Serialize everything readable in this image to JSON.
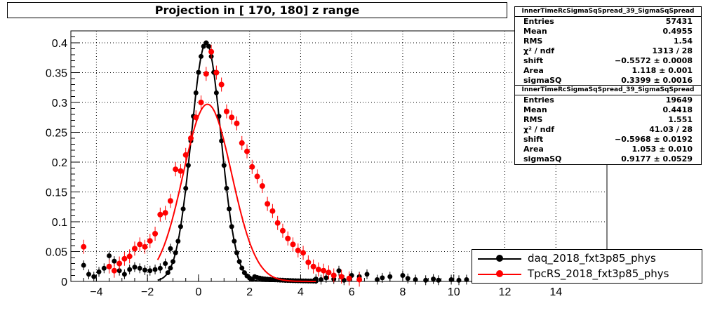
{
  "chart_data": {
    "type": "scatter",
    "title": "Projection in [ 170, 180] z range",
    "xlim": [
      -5,
      16
    ],
    "ylim": [
      0,
      0.42
    ],
    "x_ticks": [
      "−4",
      "−2",
      "0",
      "2",
      "4",
      "6",
      "8",
      "10",
      "12",
      "14"
    ],
    "x_tick_values": [
      -4,
      -2,
      0,
      2,
      4,
      6,
      8,
      10,
      12,
      14
    ],
    "y_ticks": [
      "0",
      "0.05",
      "0.1",
      "0.15",
      "0.2",
      "0.25",
      "0.3",
      "0.35",
      "0.4"
    ],
    "y_tick_values": [
      0,
      0.05,
      0.1,
      0.15,
      0.2,
      0.25,
      0.3,
      0.35,
      0.4
    ],
    "grid": true,
    "legend_position": "bottom-right",
    "series": [
      {
        "name": "daq_2018_fxt3p85_phys",
        "color": "#000000",
        "marker": "circle",
        "fit": {
          "mean": 0.3,
          "sigma": 0.583,
          "amplitude": 0.4
        },
        "extra_points": [
          [
            -4.5,
            0.027
          ],
          [
            -4.3,
            0.012
          ],
          [
            -4.1,
            0.008
          ],
          [
            -3.9,
            0.016
          ],
          [
            -3.7,
            0.022
          ],
          [
            -3.5,
            0.043
          ],
          [
            -3.3,
            0.034
          ],
          [
            -3.1,
            0.018
          ],
          [
            -2.9,
            0.012
          ],
          [
            -2.7,
            0.02
          ],
          [
            -2.5,
            0.024
          ],
          [
            -2.3,
            0.022
          ],
          [
            -2.1,
            0.019
          ],
          [
            -1.9,
            0.018
          ],
          [
            -1.7,
            0.02
          ],
          [
            -1.5,
            0.022
          ],
          [
            -1.3,
            0.03
          ],
          [
            -1.1,
            0.055
          ],
          [
            4.6,
            0.004
          ],
          [
            4.8,
            0.003
          ],
          [
            5.0,
            0.006
          ],
          [
            5.3,
            0.004
          ],
          [
            5.5,
            0.018
          ],
          [
            5.7,
            0.002
          ],
          [
            6.0,
            0.01
          ],
          [
            6.3,
            0.008
          ],
          [
            6.6,
            0.012
          ],
          [
            7.0,
            0.003
          ],
          [
            7.2,
            0.006
          ],
          [
            7.5,
            0.008
          ],
          [
            8.0,
            0.01
          ],
          [
            8.2,
            0.005
          ],
          [
            8.5,
            0.003
          ],
          [
            8.9,
            0.002
          ],
          [
            9.2,
            0.004
          ],
          [
            9.4,
            0.002
          ],
          [
            9.9,
            0.003
          ],
          [
            10.2,
            0.002
          ],
          [
            10.5,
            0.003
          ]
        ]
      },
      {
        "name": "TpcRS_2018_fxt3p85_phys",
        "color": "#ff0000",
        "marker": "circle",
        "fit": {
          "mean": 0.35,
          "sigma": 0.95,
          "amplitude": 0.297
        },
        "points": [
          [
            -4.5,
            0.058
          ],
          [
            -3.5,
            0.025
          ],
          [
            -3.3,
            0.018
          ],
          [
            -3.1,
            0.03
          ],
          [
            -2.9,
            0.038
          ],
          [
            -2.7,
            0.042
          ],
          [
            -2.5,
            0.055
          ],
          [
            -2.3,
            0.062
          ],
          [
            -2.1,
            0.058
          ],
          [
            -1.9,
            0.068
          ],
          [
            -1.7,
            0.08
          ],
          [
            -1.5,
            0.112
          ],
          [
            -1.3,
            0.115
          ],
          [
            -1.1,
            0.135
          ],
          [
            -0.9,
            0.188
          ],
          [
            -0.7,
            0.185
          ],
          [
            -0.5,
            0.212
          ],
          [
            -0.3,
            0.24
          ],
          [
            -0.1,
            0.275
          ],
          [
            0.1,
            0.3
          ],
          [
            0.3,
            0.348
          ],
          [
            0.5,
            0.385
          ],
          [
            0.7,
            0.35
          ],
          [
            0.9,
            0.33
          ],
          [
            1.1,
            0.285
          ],
          [
            1.3,
            0.275
          ],
          [
            1.5,
            0.265
          ],
          [
            1.7,
            0.232
          ],
          [
            1.9,
            0.218
          ],
          [
            2.1,
            0.192
          ],
          [
            2.3,
            0.176
          ],
          [
            2.5,
            0.16
          ],
          [
            2.7,
            0.13
          ],
          [
            2.9,
            0.118
          ],
          [
            3.1,
            0.098
          ],
          [
            3.3,
            0.085
          ],
          [
            3.5,
            0.072
          ],
          [
            3.7,
            0.062
          ],
          [
            3.9,
            0.052
          ],
          [
            4.1,
            0.048
          ],
          [
            4.3,
            0.032
          ],
          [
            4.5,
            0.025
          ],
          [
            4.7,
            0.02
          ],
          [
            4.9,
            0.018
          ],
          [
            5.1,
            0.015
          ],
          [
            5.3,
            0.01
          ],
          [
            5.6,
            0.008
          ],
          [
            5.9,
            0.005
          ],
          [
            6.3,
            0.003
          ]
        ]
      }
    ]
  },
  "stats_boxes": [
    {
      "title": "InnerTimeRcSigmaSqSpread_39_SigmaSqSpread",
      "rows": [
        [
          "Entries",
          "57431"
        ],
        [
          "Mean",
          "0.4955"
        ],
        [
          "RMS",
          "1.54"
        ],
        [
          "χ² / ndf",
          "1313 / 28"
        ],
        [
          "shift",
          "−0.5572 ± 0.0008"
        ],
        [
          "Area",
          "1.118 ± 0.001"
        ],
        [
          "sigmaSQ",
          "0.3399 ± 0.0016"
        ]
      ]
    },
    {
      "title": "InnerTimeRcSigmaSqSpread_39_SigmaSqSpread",
      "rows": [
        [
          "Entries",
          "19649"
        ],
        [
          "Mean",
          "0.4418"
        ],
        [
          "RMS",
          "1.551"
        ],
        [
          "χ² / ndf",
          "41.03 / 28"
        ],
        [
          "shift",
          "−0.5968 ± 0.0192"
        ],
        [
          "Area",
          "1.053 ± 0.010"
        ],
        [
          "sigmaSQ",
          "0.9177 ± 0.0529"
        ]
      ]
    }
  ]
}
